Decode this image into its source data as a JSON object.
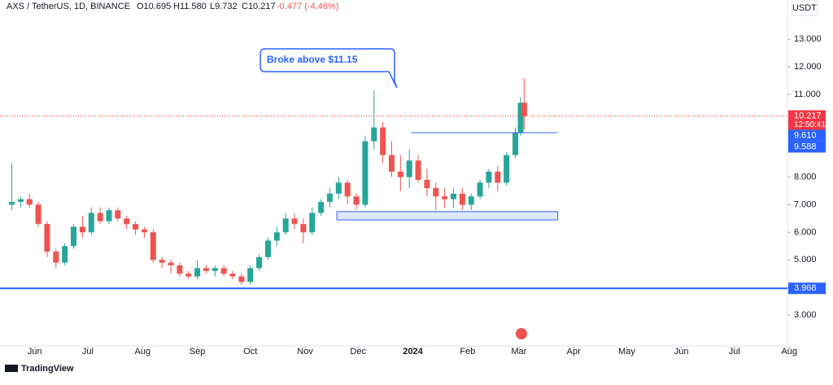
{
  "header": {
    "symbol": "AXS / TetherUS, 1D, BINANCE",
    "open": "O10.695",
    "high": "H11.580",
    "low": "L9.732",
    "close": "C10.217",
    "change": "-0.477 (-4.46%)",
    "currency": "USDT"
  },
  "footer": {
    "brand": "TradingView"
  },
  "chart_data": {
    "type": "candlestick",
    "annotation": "Broke above $11.15",
    "up_color": "#26a69a",
    "down_color": "#ef5350",
    "xlim": [
      0,
      442
    ],
    "ylim": [
      1.88,
      14.42
    ],
    "xticks": [
      {
        "value": 16,
        "label": "Jun"
      },
      {
        "value": 46,
        "label": "Jul"
      },
      {
        "value": 77,
        "label": "Aug"
      },
      {
        "value": 108,
        "label": "Sep"
      },
      {
        "value": 138,
        "label": "Oct"
      },
      {
        "value": 169,
        "label": "Nov"
      },
      {
        "value": 199,
        "label": "Dec"
      },
      {
        "value": 230,
        "label": "2024"
      },
      {
        "value": 261,
        "label": "Feb"
      },
      {
        "value": 290,
        "label": "Mar"
      },
      {
        "value": 321,
        "label": "Apr"
      },
      {
        "value": 351,
        "label": "May"
      },
      {
        "value": 382,
        "label": "Jun"
      },
      {
        "value": 412,
        "label": "Jul"
      },
      {
        "value": 443,
        "label": "Aug"
      }
    ],
    "yticks": [
      {
        "value": 3,
        "label": "3.000"
      },
      {
        "value": 4,
        "label": "4.000"
      },
      {
        "value": 5,
        "label": "5.000"
      },
      {
        "value": 6,
        "label": "6.000"
      },
      {
        "value": 7,
        "label": "7.000"
      },
      {
        "value": 8,
        "label": "8.000"
      },
      {
        "value": 9,
        "label": "9.000"
      },
      {
        "value": 10,
        "label": "10.000"
      },
      {
        "value": 11,
        "label": "11.000"
      },
      {
        "value": 12,
        "label": "12.000"
      },
      {
        "value": 13,
        "label": "13.000"
      }
    ],
    "x": [
      3,
      8,
      13,
      18,
      23,
      28,
      33,
      38,
      43,
      48,
      53,
      58,
      63,
      68,
      73,
      78,
      83,
      88,
      93,
      98,
      103,
      108,
      113,
      118,
      123,
      128,
      133,
      138,
      143,
      148,
      153,
      158,
      163,
      168,
      173,
      178,
      183,
      188,
      193,
      198,
      203,
      208,
      213,
      218,
      223,
      228,
      233,
      238,
      243,
      248,
      253,
      258,
      263,
      268,
      273,
      278,
      283,
      288,
      291,
      293
    ],
    "open": [
      7.0,
      7.1,
      7.2,
      7.0,
      6.3,
      5.3,
      4.9,
      5.5,
      6.2,
      6.0,
      6.7,
      6.4,
      6.8,
      6.5,
      6.3,
      6.1,
      6.0,
      5.0,
      4.9,
      4.8,
      4.5,
      4.4,
      4.7,
      4.6,
      4.7,
      4.5,
      4.4,
      4.2,
      4.7,
      5.1,
      5.7,
      6.0,
      6.5,
      6.3,
      6.0,
      6.7,
      7.1,
      7.4,
      7.8,
      7.3,
      7.0,
      9.3,
      9.8,
      8.8,
      8.2,
      8.0,
      8.6,
      7.9,
      7.6,
      7.3,
      7.2,
      7.4,
      7.0,
      7.3,
      7.8,
      8.2,
      7.8,
      8.8,
      9.6,
      10.695
    ],
    "high": [
      8.5,
      7.3,
      7.4,
      7.1,
      6.4,
      5.4,
      5.6,
      6.3,
      6.6,
      6.9,
      6.9,
      6.9,
      6.9,
      6.6,
      6.4,
      6.2,
      6.1,
      5.1,
      5.0,
      4.9,
      4.6,
      5.0,
      4.8,
      4.8,
      4.8,
      4.6,
      4.5,
      4.8,
      5.2,
      5.8,
      6.2,
      6.7,
      6.7,
      6.5,
      6.9,
      7.2,
      7.6,
      8.0,
      7.9,
      7.4,
      9.5,
      11.15,
      10.0,
      9.3,
      8.8,
      9.0,
      8.8,
      8.3,
      7.8,
      7.6,
      7.6,
      7.6,
      7.4,
      7.9,
      8.3,
      8.4,
      8.9,
      9.8,
      10.9,
      11.58
    ],
    "low": [
      6.8,
      6.9,
      6.9,
      6.2,
      5.1,
      4.7,
      4.8,
      5.4,
      5.8,
      5.9,
      6.3,
      6.3,
      6.4,
      6.1,
      5.9,
      5.8,
      4.9,
      4.7,
      4.5,
      4.4,
      4.3,
      4.3,
      4.5,
      4.4,
      4.4,
      4.3,
      4.1,
      4.1,
      4.6,
      5.0,
      5.5,
      5.9,
      6.1,
      5.6,
      5.9,
      6.6,
      6.9,
      7.2,
      7.0,
      6.8,
      6.9,
      9.0,
      8.5,
      8.0,
      7.5,
      7.6,
      7.8,
      7.3,
      6.8,
      6.9,
      6.9,
      6.8,
      6.8,
      7.2,
      7.6,
      7.5,
      7.7,
      8.7,
      9.5,
      9.732
    ],
    "close": [
      7.1,
      7.2,
      7.0,
      6.3,
      5.3,
      4.9,
      5.5,
      6.2,
      6.0,
      6.7,
      6.4,
      6.8,
      6.5,
      6.3,
      6.1,
      6.0,
      5.0,
      4.9,
      4.8,
      4.5,
      4.4,
      4.7,
      4.6,
      4.7,
      4.5,
      4.4,
      4.2,
      4.7,
      5.1,
      5.7,
      6.0,
      6.5,
      6.3,
      6.0,
      6.7,
      7.1,
      7.4,
      7.8,
      7.3,
      7.0,
      9.3,
      9.8,
      8.8,
      8.2,
      8.0,
      8.6,
      7.9,
      7.6,
      7.3,
      7.2,
      7.4,
      7.0,
      7.3,
      7.8,
      8.2,
      7.8,
      8.8,
      9.6,
      10.695,
      10.217
    ],
    "markers": [
      {
        "value": 10.217,
        "label": "10.217",
        "sublabel": "12:50:41",
        "color": "#f23645",
        "line": "dotted"
      },
      {
        "value": 9.61,
        "label": "9.610",
        "color": "#2962ff",
        "x_range": [
          229,
          312
        ]
      },
      {
        "value": 9.588,
        "label": "9.588",
        "color": "#2962ff"
      },
      {
        "value": 3.968,
        "label": "3.968",
        "color": "#2962ff",
        "line": "solid"
      }
    ],
    "zone": {
      "x": [
        187,
        312
      ],
      "y": [
        6.45,
        6.75
      ],
      "color": "#2962ff"
    }
  }
}
